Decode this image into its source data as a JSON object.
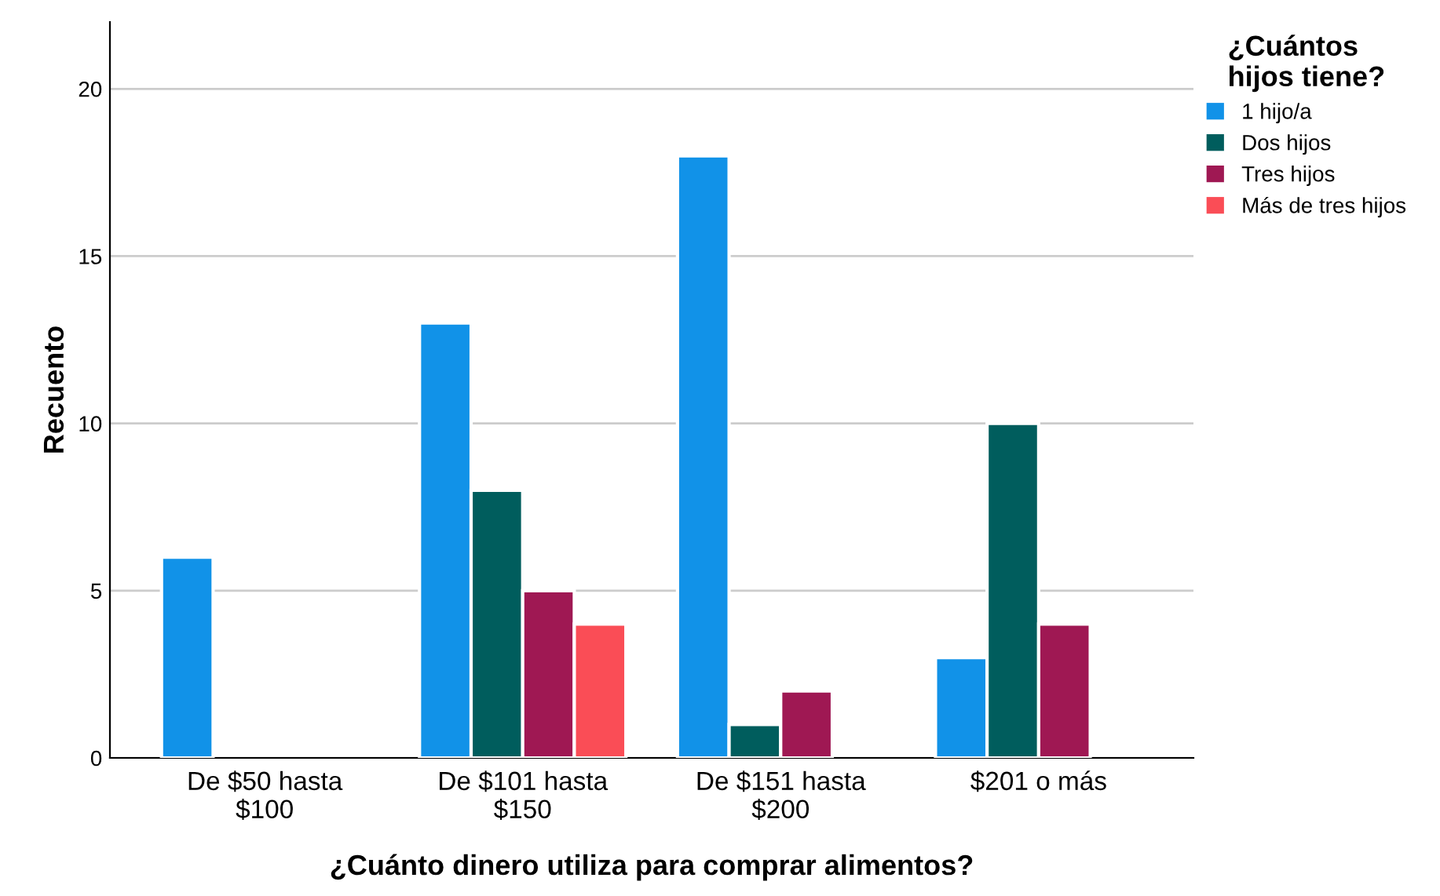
{
  "chart_data": {
    "type": "bar",
    "xlabel": "¿Cuánto dinero utiliza para comprar alimentos?",
    "ylabel": "Recuento",
    "legend_title": "¿Cuántos\nhijos tiene?",
    "categories": [
      "De $50 hasta\n$100",
      "De $101 hasta\n$150",
      "De $151 hasta\n$200",
      "$201 o más"
    ],
    "series": [
      {
        "name": "1 hijo/a",
        "color": "#1192e8",
        "values": [
          6,
          13,
          18,
          3
        ]
      },
      {
        "name": "Dos hijos",
        "color": "#005d5d",
        "values": [
          null,
          8,
          1,
          10
        ]
      },
      {
        "name": "Tres hijos",
        "color": "#9f1853",
        "values": [
          null,
          5,
          2,
          4
        ]
      },
      {
        "name": "Más de tres hijos",
        "color": "#fa4d56",
        "values": [
          null,
          4,
          null,
          null
        ]
      }
    ],
    "ylim": [
      0,
      22
    ],
    "yticks": [
      0,
      5,
      10,
      15,
      20
    ],
    "grid": "y",
    "legend": "top right"
  }
}
